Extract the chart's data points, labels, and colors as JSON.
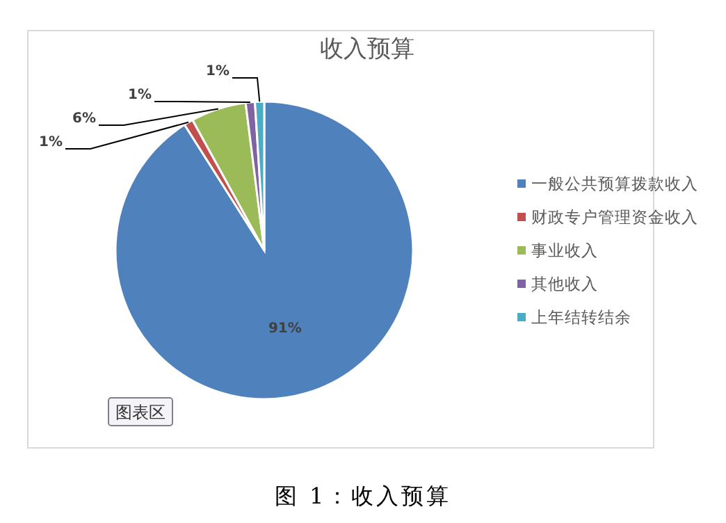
{
  "chart_data": {
    "type": "pie",
    "title": "收入预算",
    "categories": [
      "一般公共预算拨款收入",
      "财政专户管理资金收入",
      "事业收入",
      "其他收入",
      "上年结转结余"
    ],
    "values": [
      91,
      1,
      6,
      1,
      1
    ],
    "colors": [
      "#4f81bd",
      "#c0504d",
      "#9bbb59",
      "#8064a2",
      "#4bacc6"
    ],
    "value_labels": [
      "91%",
      "1%",
      "6%",
      "1%",
      "1%"
    ],
    "legend": "right",
    "annotations": [
      "图表区",
      "图 1：收入预算"
    ]
  }
}
